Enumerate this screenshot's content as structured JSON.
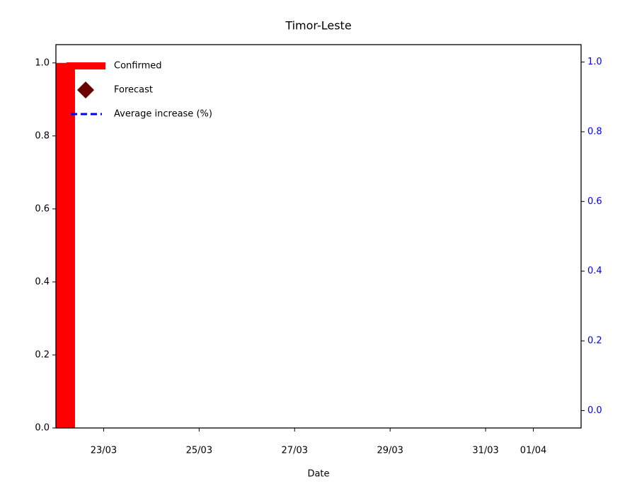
{
  "chart_data": {
    "type": "bar",
    "title": "Timor-Leste",
    "xlabel": "Date",
    "xlim": [
      "22/03",
      "02/04"
    ],
    "xticks": [
      "23/03",
      "25/03",
      "27/03",
      "29/03",
      "31/03",
      "01/04"
    ],
    "ylim": [
      0,
      1.05
    ],
    "yticks": [
      {
        "value": 0,
        "label": "0.0"
      },
      0.2,
      0.4,
      0.6,
      0.8,
      {
        "value": 1,
        "label": "1.0"
      }
    ],
    "y2lim": [
      -0.05,
      1.05
    ],
    "y2ticks": [
      {
        "value": 0,
        "label": "0.0"
      },
      0.2,
      0.4,
      0.6,
      0.8,
      {
        "value": 1,
        "label": "1.0"
      }
    ],
    "y2color": "#0000ff",
    "legend": "upper left",
    "series": [
      {
        "name": "Confirmed",
        "color": "#ff0000",
        "kind": "bar",
        "x": [
          "22/03"
        ],
        "values": [
          1
        ]
      },
      {
        "name": "Forecast",
        "color": "#6b0000",
        "kind": "diamond",
        "axis": "y",
        "x": [],
        "values": []
      },
      {
        "name": "Average increase (%)",
        "color": "#0000ff",
        "kind": "dashed",
        "axis": "y2",
        "x": [],
        "values": []
      }
    ]
  }
}
